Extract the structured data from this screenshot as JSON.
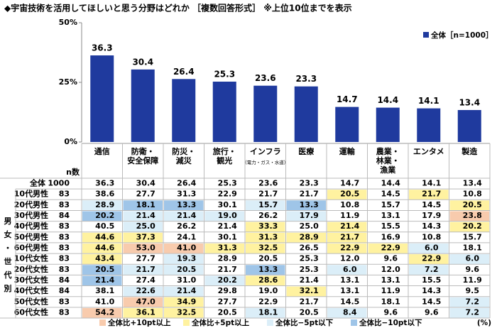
{
  "chart_data": {
    "type": "bar",
    "title": "◆宇宙技術を活用してほしいと思う分野はどれか ［複数回答形式］ ※上位10位までを表示",
    "categories": [
      "通信",
      "防衛・安全保障",
      "防災・減災",
      "旅行・観光",
      "インフラ",
      "医療",
      "運輸",
      "農業・林業・漁業",
      "エンタメ",
      "製造"
    ],
    "category_notes": [
      null,
      null,
      null,
      null,
      "（電力・ガス・水道）",
      null,
      null,
      null,
      null,
      null
    ],
    "series": [
      {
        "name": "全体［n=1000］",
        "color": "#1f3a9e",
        "values": [
          36.3,
          30.4,
          26.4,
          25.3,
          23.6,
          23.3,
          14.7,
          14.4,
          14.1,
          13.4
        ]
      }
    ],
    "ylim": [
      0,
      50
    ],
    "yticks": [
      {
        "value": 0,
        "label": "0%"
      },
      {
        "value": 25,
        "label": "25%"
      },
      {
        "value": 50,
        "label": "50%"
      }
    ],
    "legend": "upper right"
  },
  "table": {
    "n_header": "n数",
    "group_label": "男女・世代別",
    "unit": "(%)",
    "legend": [
      {
        "label": "全体比+10pt以上",
        "color": "#f8cbad"
      },
      {
        "label": "全体比+5pt以上",
        "color": "#fff2a0"
      },
      {
        "label": "全体比−5pt以下",
        "color": "#dbeef8"
      },
      {
        "label": "全体比−10pt以下",
        "color": "#9fc5e8"
      }
    ],
    "rows": [
      {
        "label": "全体",
        "n": 1000,
        "values": [
          "36.3",
          "30.4",
          "26.4",
          "25.3",
          "23.6",
          "23.3",
          "14.7",
          "14.4",
          "14.1",
          "13.4"
        ],
        "highlights": [
          null,
          null,
          null,
          null,
          null,
          null,
          null,
          null,
          null,
          null
        ]
      },
      {
        "label": "10代男性",
        "n": 83,
        "values": [
          "38.6",
          "27.7",
          "31.3",
          "22.9",
          "21.7",
          "21.7",
          "20.5",
          "14.5",
          "21.7",
          "10.8"
        ],
        "highlights": [
          null,
          null,
          null,
          null,
          null,
          null,
          1,
          null,
          1,
          null
        ]
      },
      {
        "label": "20代男性",
        "n": 83,
        "values": [
          "28.9",
          "18.1",
          "13.3",
          "30.1",
          "15.7",
          "13.3",
          "10.8",
          "15.7",
          "14.5",
          "20.5"
        ],
        "highlights": [
          2,
          3,
          3,
          null,
          2,
          3,
          null,
          null,
          null,
          1
        ]
      },
      {
        "label": "30代男性",
        "n": 84,
        "values": [
          "20.2",
          "21.4",
          "21.4",
          "19.0",
          "26.2",
          "17.9",
          "11.9",
          "13.1",
          "17.9",
          "23.8"
        ],
        "highlights": [
          3,
          2,
          2,
          2,
          null,
          2,
          null,
          null,
          null,
          0
        ]
      },
      {
        "label": "40代男性",
        "n": 83,
        "values": [
          "40.5",
          "25.0",
          "26.2",
          "21.4",
          "33.3",
          "25.0",
          "21.4",
          "15.5",
          "14.3",
          "20.2"
        ],
        "highlights": [
          null,
          2,
          null,
          null,
          1,
          null,
          1,
          null,
          null,
          1
        ]
      },
      {
        "label": "50代男性",
        "n": 83,
        "values": [
          "44.6",
          "37.3",
          "24.1",
          "30.1",
          "31.3",
          "28.9",
          "21.7",
          "16.9",
          "10.8",
          "15.7"
        ],
        "highlights": [
          1,
          1,
          null,
          null,
          1,
          1,
          1,
          null,
          null,
          null
        ]
      },
      {
        "label": "60代男性",
        "n": 83,
        "values": [
          "44.6",
          "53.0",
          "41.0",
          "31.3",
          "32.5",
          "26.5",
          "22.9",
          "22.9",
          "6.0",
          "18.1"
        ],
        "highlights": [
          1,
          0,
          0,
          1,
          1,
          null,
          1,
          1,
          2,
          null
        ]
      },
      {
        "label": "10代女性",
        "n": 83,
        "values": [
          "43.4",
          "27.7",
          "19.3",
          "28.9",
          "20.5",
          "25.3",
          "12.0",
          "9.6",
          "22.9",
          "6.0"
        ],
        "highlights": [
          1,
          null,
          2,
          null,
          null,
          null,
          null,
          null,
          1,
          2
        ]
      },
      {
        "label": "20代女性",
        "n": 83,
        "values": [
          "20.5",
          "21.7",
          "20.5",
          "21.7",
          "13.3",
          "25.3",
          "6.0",
          "12.0",
          "7.2",
          "9.6"
        ],
        "highlights": [
          3,
          2,
          2,
          null,
          3,
          null,
          2,
          null,
          2,
          null
        ]
      },
      {
        "label": "30代女性",
        "n": 84,
        "values": [
          "21.4",
          "27.4",
          "31.0",
          "20.2",
          "28.6",
          "21.4",
          "13.1",
          "13.1",
          "15.5",
          "11.9"
        ],
        "highlights": [
          3,
          null,
          null,
          2,
          1,
          null,
          null,
          null,
          null,
          null
        ]
      },
      {
        "label": "40代女性",
        "n": 84,
        "values": [
          "38.1",
          "22.6",
          "21.4",
          "29.8",
          "19.0",
          "32.1",
          "13.1",
          "11.9",
          "14.3",
          "9.5"
        ],
        "highlights": [
          null,
          2,
          2,
          null,
          null,
          1,
          null,
          null,
          null,
          null
        ]
      },
      {
        "label": "50代女性",
        "n": 83,
        "values": [
          "41.0",
          "47.0",
          "34.9",
          "27.7",
          "22.9",
          "21.7",
          "14.5",
          "18.1",
          "14.5",
          "7.2"
        ],
        "highlights": [
          null,
          0,
          1,
          null,
          null,
          null,
          null,
          null,
          null,
          2
        ]
      },
      {
        "label": "60代女性",
        "n": 83,
        "values": [
          "54.2",
          "36.1",
          "32.5",
          "20.5",
          "18.1",
          "20.5",
          "8.4",
          "9.6",
          "9.6",
          "7.2"
        ],
        "highlights": [
          0,
          1,
          1,
          null,
          2,
          null,
          2,
          null,
          null,
          2
        ]
      }
    ]
  }
}
